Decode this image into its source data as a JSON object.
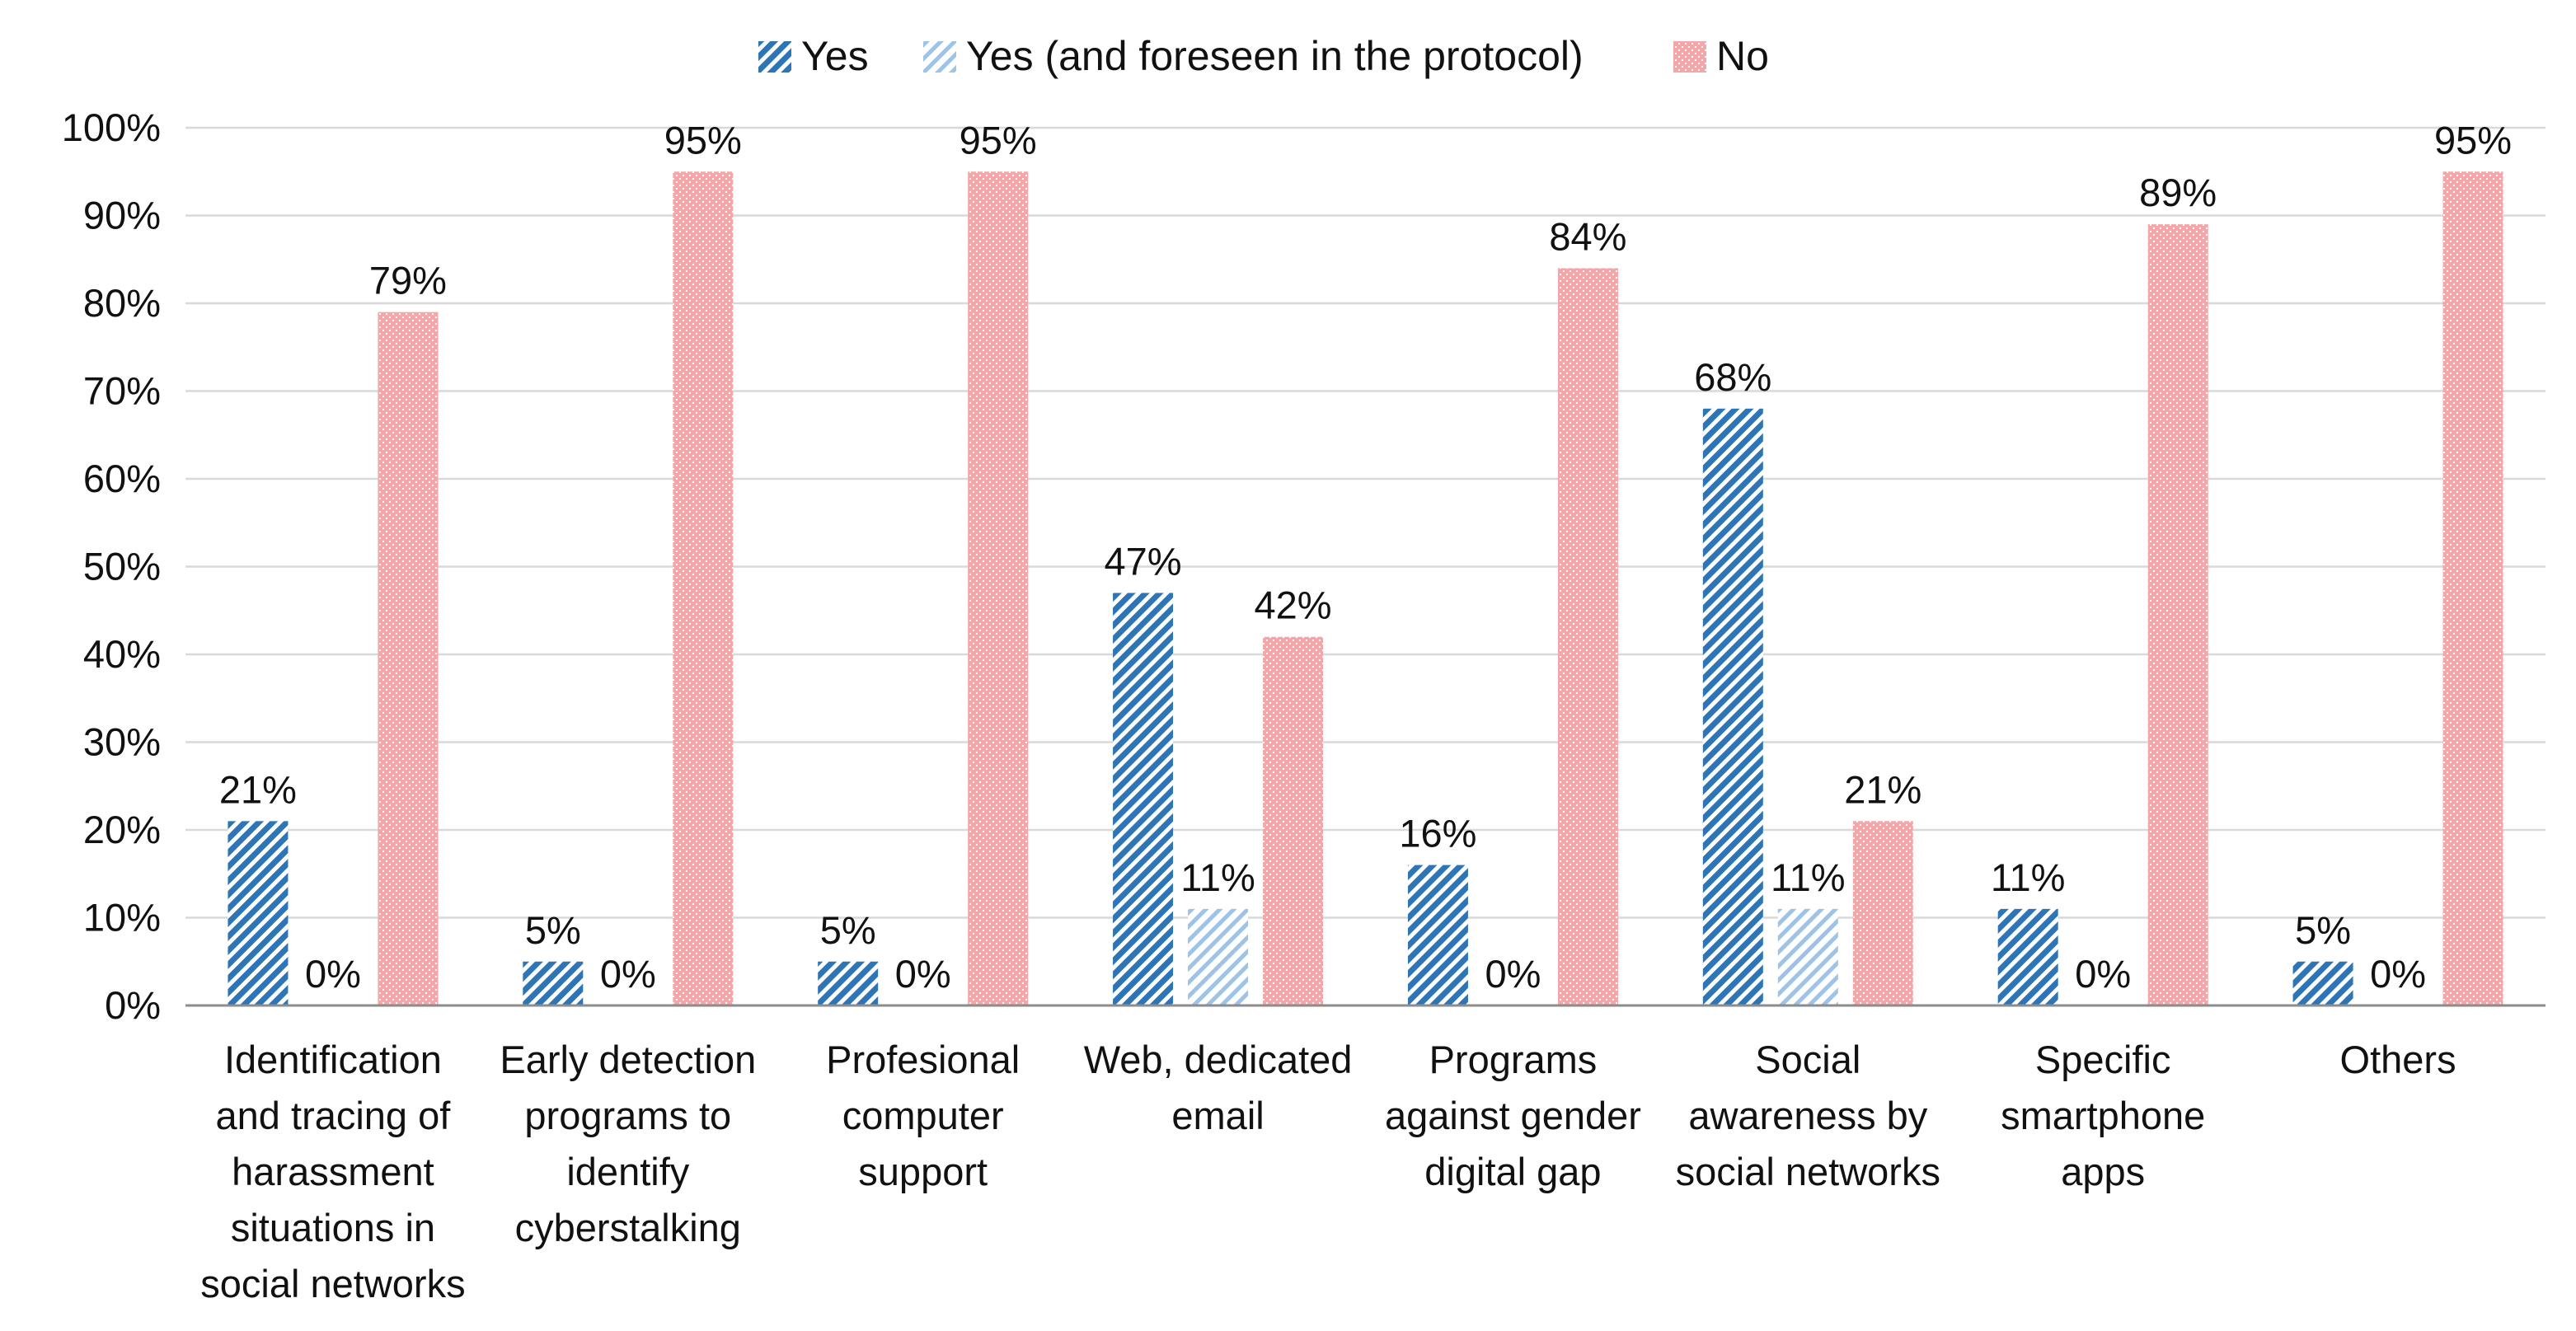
{
  "chart_data": {
    "type": "bar",
    "title": "",
    "xlabel": "",
    "ylabel": "",
    "ylim": [
      0,
      100
    ],
    "yticks": [
      0,
      10,
      20,
      30,
      40,
      50,
      60,
      70,
      80,
      90,
      100
    ],
    "ytick_labels": [
      "0%",
      "10%",
      "20%",
      "30%",
      "40%",
      "50%",
      "60%",
      "70%",
      "80%",
      "90%",
      "100%"
    ],
    "grid": true,
    "legend_position": "top-center",
    "categories": [
      [
        "Identification",
        "and tracing of",
        "harassment",
        "situations in",
        "social networks"
      ],
      [
        "Early detection",
        "programs to",
        "identify",
        "cyberstalking"
      ],
      [
        "Profesional",
        "computer",
        "support"
      ],
      [
        "Web, dedicated",
        "email"
      ],
      [
        "Programs",
        "against gender",
        "digital gap"
      ],
      [
        "Social",
        "awareness by",
        "social networks"
      ],
      [
        "Specific",
        "smartphone",
        "apps"
      ],
      [
        "Others"
      ]
    ],
    "series": [
      {
        "name": "Yes",
        "color": "#2e75b6",
        "pattern": "dense-diagonal-hatch",
        "values": [
          21,
          5,
          5,
          47,
          16,
          68,
          11,
          5
        ],
        "labels": [
          "21%",
          "5%",
          "5%",
          "47%",
          "16%",
          "68%",
          "11%",
          "5%"
        ]
      },
      {
        "name": "Yes (and foreseen in the protocol)",
        "color": "#9dc3e6",
        "pattern": "light-diagonal-hatch",
        "values": [
          0,
          0,
          0,
          11,
          0,
          11,
          0,
          0
        ],
        "labels": [
          "0%",
          "0%",
          "0%",
          "11%",
          "0%",
          "11%",
          "0%",
          "0%"
        ]
      },
      {
        "name": "No",
        "color": "#f4a6a8",
        "pattern": "dotted-grid",
        "values": [
          79,
          95,
          95,
          42,
          84,
          21,
          89,
          95
        ],
        "labels": [
          "79%",
          "95%",
          "95%",
          "42%",
          "84%",
          "21%",
          "89%",
          "95%"
        ]
      }
    ]
  }
}
